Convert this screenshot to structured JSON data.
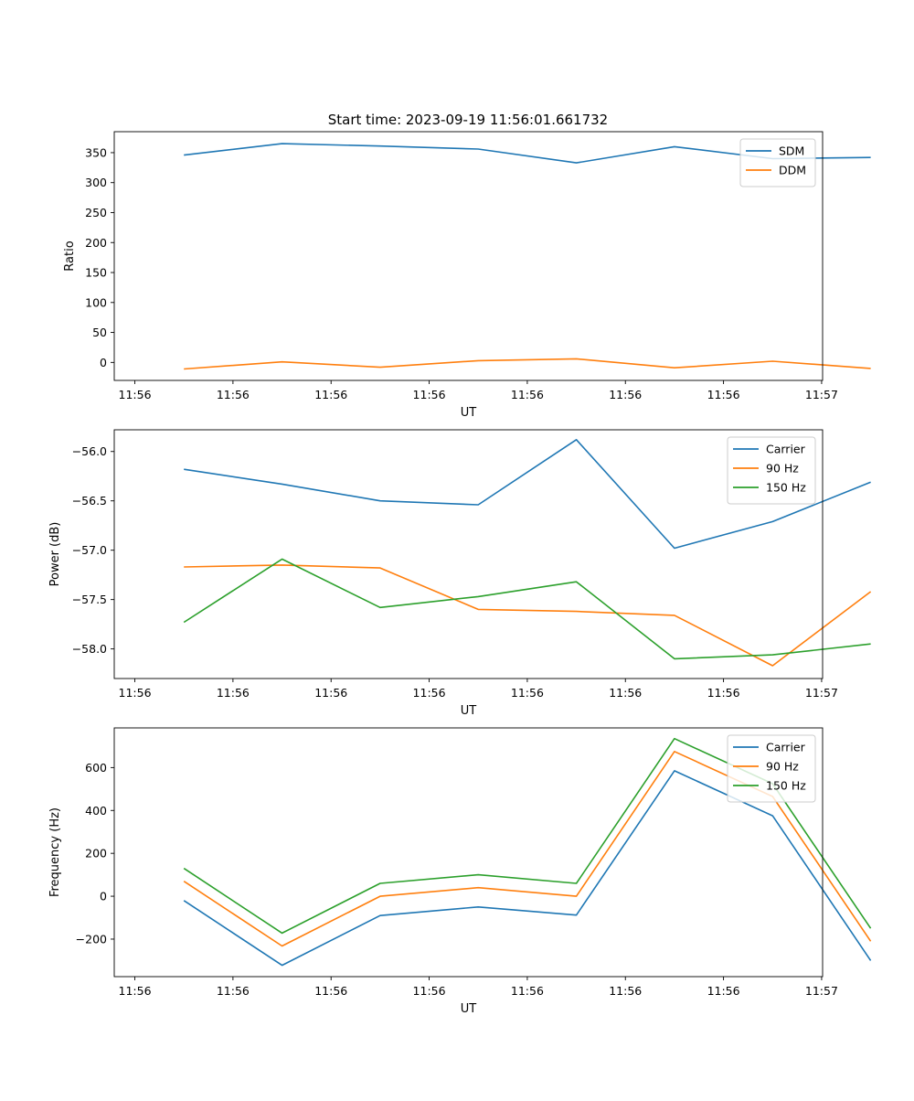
{
  "title": "Start time: 2023-09-19 11:56:01.661732",
  "colors": {
    "c0": "#1f77b4",
    "c1": "#ff7f0e",
    "c2": "#2ca02c"
  },
  "chart_data": [
    {
      "type": "line",
      "xlabel": "UT",
      "ylabel": "Ratio",
      "x_tick_labels": [
        "11:56",
        "11:56",
        "11:56",
        "11:56",
        "11:56",
        "11:56",
        "11:56",
        "11:57"
      ],
      "x_tick_positions": [
        -0.5,
        0.5,
        1.5,
        2.5,
        3.5,
        4.5,
        5.5,
        6.5
      ],
      "xlim": [
        -0.71,
        6.51
      ],
      "ylim": [
        -30,
        385
      ],
      "y_ticks": [
        0,
        50,
        100,
        150,
        200,
        250,
        300,
        350
      ],
      "legend_position": "upper-right",
      "x": [
        0,
        1,
        2,
        3,
        4,
        5,
        6,
        7
      ],
      "series": [
        {
          "name": "SDM",
          "color": "#1f77b4",
          "values": [
            346,
            365,
            361,
            356,
            333,
            360,
            340,
            342
          ]
        },
        {
          "name": "DDM",
          "color": "#ff7f0e",
          "values": [
            -11,
            1,
            -8,
            3,
            6,
            -9,
            2,
            -10
          ]
        }
      ]
    },
    {
      "type": "line",
      "xlabel": "UT",
      "ylabel": "Power (dB)",
      "x_tick_labels": [
        "11:56",
        "11:56",
        "11:56",
        "11:56",
        "11:56",
        "11:56",
        "11:56",
        "11:57"
      ],
      "x_tick_positions": [
        -0.5,
        0.5,
        1.5,
        2.5,
        3.5,
        4.5,
        5.5,
        6.5
      ],
      "xlim": [
        -0.71,
        6.51
      ],
      "ylim": [
        -58.3,
        -55.78
      ],
      "y_ticks": [
        -58.0,
        -57.5,
        -57.0,
        -56.5,
        -56.0
      ],
      "y_tick_labels": [
        "−58.0",
        "−57.5",
        "−57.0",
        "−56.5",
        "−56.0"
      ],
      "legend_position": "upper-right",
      "x": [
        0,
        1,
        2,
        3,
        4,
        5,
        6,
        7
      ],
      "series": [
        {
          "name": "Carrier",
          "color": "#1f77b4",
          "values": [
            -56.18,
            -56.33,
            -56.5,
            -56.54,
            -55.88,
            -56.98,
            -56.71,
            -56.31
          ]
        },
        {
          "name": "90 Hz",
          "color": "#ff7f0e",
          "values": [
            -57.17,
            -57.15,
            -57.18,
            -57.6,
            -57.62,
            -57.66,
            -58.17,
            -57.42
          ]
        },
        {
          "name": "150 Hz",
          "color": "#2ca02c",
          "values": [
            -57.73,
            -57.09,
            -57.58,
            -57.47,
            -57.32,
            -58.1,
            -58.06,
            -57.95
          ]
        }
      ]
    },
    {
      "type": "line",
      "xlabel": "UT",
      "ylabel": "Frequency (Hz)",
      "x_tick_labels": [
        "11:56",
        "11:56",
        "11:56",
        "11:56",
        "11:56",
        "11:56",
        "11:56",
        "11:57"
      ],
      "x_tick_positions": [
        -0.5,
        0.5,
        1.5,
        2.5,
        3.5,
        4.5,
        5.5,
        6.5
      ],
      "xlim": [
        -0.71,
        6.51
      ],
      "ylim": [
        -375,
        785
      ],
      "y_ticks": [
        -200,
        0,
        200,
        400,
        600
      ],
      "y_tick_labels": [
        "−200",
        "0",
        "200",
        "400",
        "600"
      ],
      "legend_position": "upper-right",
      "x": [
        0,
        1,
        2,
        3,
        4,
        5,
        6,
        7
      ],
      "series": [
        {
          "name": "Carrier",
          "color": "#1f77b4",
          "values": [
            -20,
            -322,
            -90,
            -50,
            -88,
            585,
            375,
            -300
          ]
        },
        {
          "name": "90 Hz",
          "color": "#ff7f0e",
          "values": [
            70,
            -232,
            0,
            40,
            0,
            675,
            465,
            -210
          ]
        },
        {
          "name": "150 Hz",
          "color": "#2ca02c",
          "values": [
            130,
            -172,
            60,
            100,
            60,
            735,
            525,
            -150
          ]
        }
      ]
    }
  ]
}
